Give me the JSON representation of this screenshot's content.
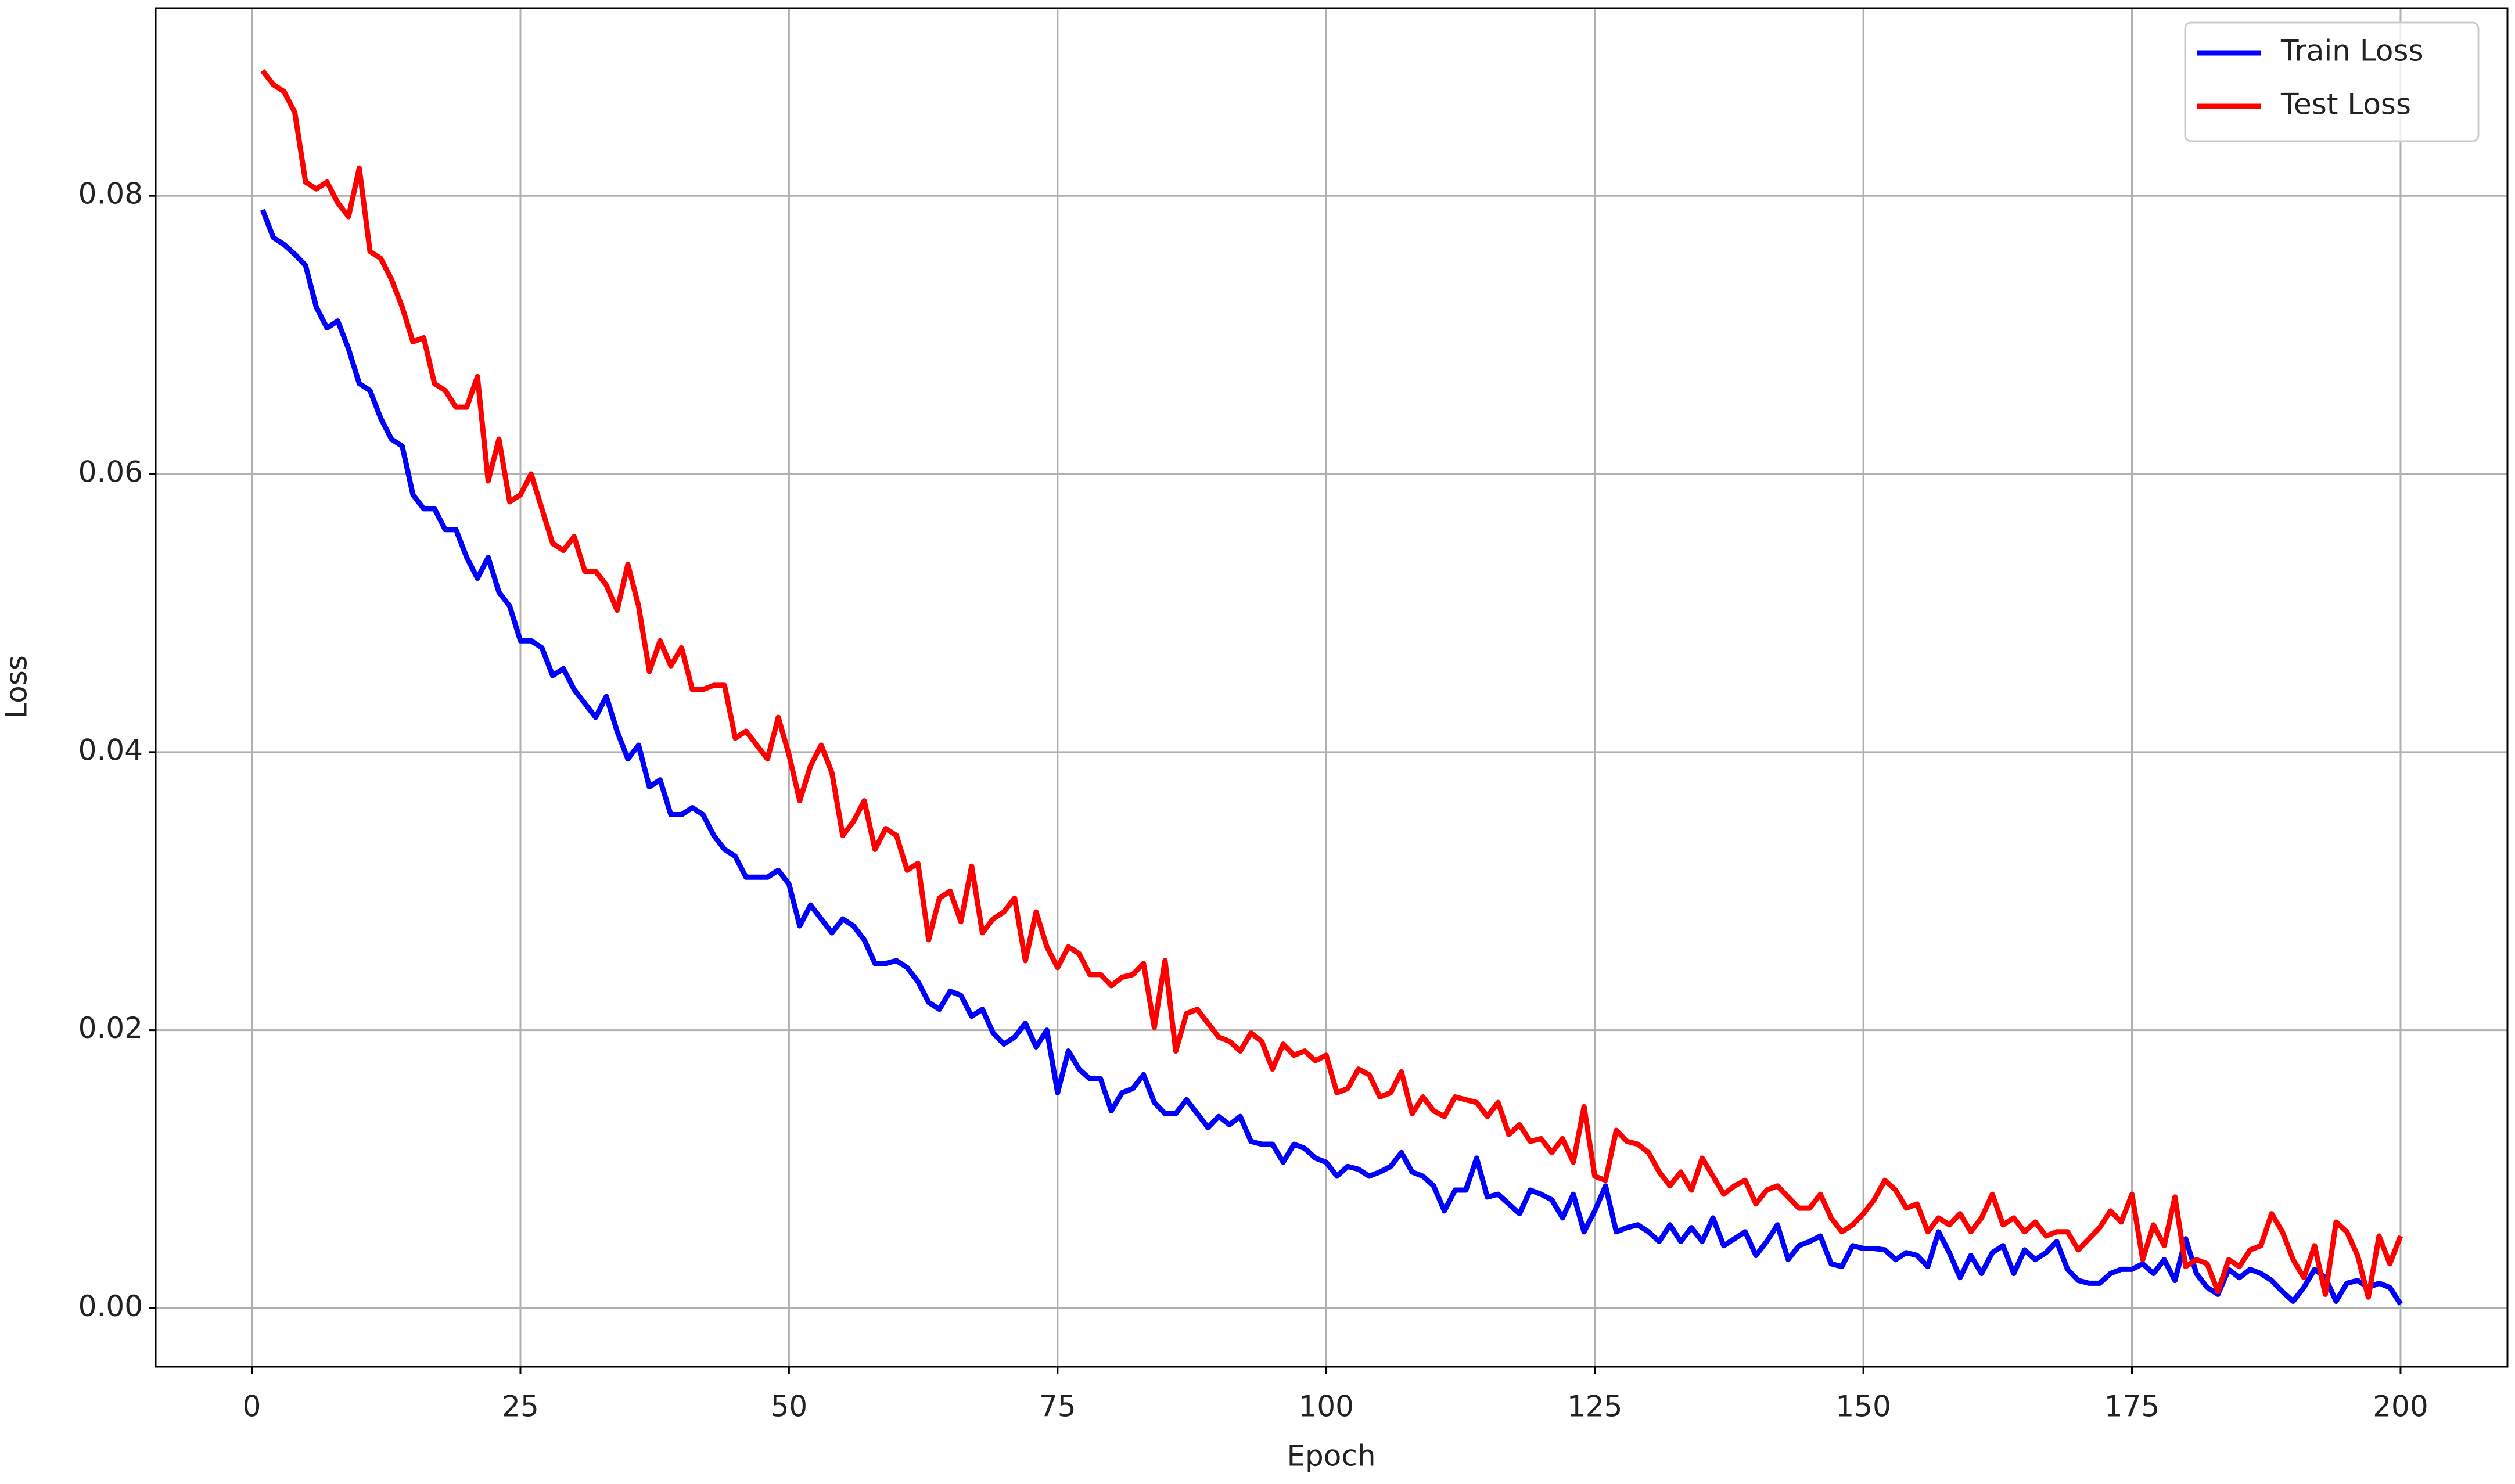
{
  "chart_data": {
    "type": "line",
    "xlabel": "Epoch",
    "ylabel": "Loss",
    "x": [
      1,
      2,
      3,
      4,
      5,
      6,
      7,
      8,
      9,
      10,
      11,
      12,
      13,
      14,
      15,
      16,
      17,
      18,
      19,
      20,
      21,
      22,
      23,
      24,
      25,
      26,
      27,
      28,
      29,
      30,
      31,
      32,
      33,
      34,
      35,
      36,
      37,
      38,
      39,
      40,
      41,
      42,
      43,
      44,
      45,
      46,
      47,
      48,
      49,
      50,
      51,
      52,
      53,
      54,
      55,
      56,
      57,
      58,
      59,
      60,
      61,
      62,
      63,
      64,
      65,
      66,
      67,
      68,
      69,
      70,
      71,
      72,
      73,
      74,
      75,
      76,
      77,
      78,
      79,
      80,
      81,
      82,
      83,
      84,
      85,
      86,
      87,
      88,
      89,
      90,
      91,
      92,
      93,
      94,
      95,
      96,
      97,
      98,
      99,
      100,
      101,
      102,
      103,
      104,
      105,
      106,
      107,
      108,
      109,
      110,
      111,
      112,
      113,
      114,
      115,
      116,
      117,
      118,
      119,
      120,
      121,
      122,
      123,
      124,
      125,
      126,
      127,
      128,
      129,
      130,
      131,
      132,
      133,
      134,
      135,
      136,
      137,
      138,
      139,
      140,
      141,
      142,
      143,
      144,
      145,
      146,
      147,
      148,
      149,
      150,
      151,
      152,
      153,
      154,
      155,
      156,
      157,
      158,
      159,
      160,
      161,
      162,
      163,
      164,
      165,
      166,
      167,
      168,
      169,
      170,
      171,
      172,
      173,
      174,
      175,
      176,
      177,
      178,
      179,
      180,
      181,
      182,
      183,
      184,
      185,
      186,
      187,
      188,
      189,
      190,
      191,
      192,
      193,
      194,
      195,
      196,
      197,
      198,
      199,
      200
    ],
    "series": [
      {
        "name": "Train Loss",
        "color": "#0000ff",
        "values": [
          0.079,
          0.077,
          0.0765,
          0.0758,
          0.075,
          0.072,
          0.0705,
          0.071,
          0.069,
          0.0665,
          0.066,
          0.064,
          0.0625,
          0.062,
          0.0585,
          0.0575,
          0.0575,
          0.056,
          0.056,
          0.054,
          0.0525,
          0.054,
          0.0515,
          0.0505,
          0.048,
          0.048,
          0.0475,
          0.0455,
          0.046,
          0.0445,
          0.0435,
          0.0425,
          0.044,
          0.0415,
          0.0395,
          0.0405,
          0.0375,
          0.038,
          0.0355,
          0.0355,
          0.036,
          0.0355,
          0.034,
          0.033,
          0.0325,
          0.031,
          0.031,
          0.031,
          0.0315,
          0.0305,
          0.0275,
          0.029,
          0.028,
          0.027,
          0.028,
          0.0275,
          0.0265,
          0.0248,
          0.0248,
          0.025,
          0.0245,
          0.0235,
          0.022,
          0.0215,
          0.0228,
          0.0225,
          0.021,
          0.0215,
          0.0198,
          0.019,
          0.0195,
          0.0205,
          0.0188,
          0.02,
          0.0155,
          0.0185,
          0.0172,
          0.0165,
          0.0165,
          0.0142,
          0.0155,
          0.0158,
          0.0168,
          0.0148,
          0.014,
          0.014,
          0.015,
          0.014,
          0.013,
          0.0138,
          0.0132,
          0.0138,
          0.012,
          0.0118,
          0.0118,
          0.0105,
          0.0118,
          0.0115,
          0.0108,
          0.0105,
          0.0095,
          0.0102,
          0.01,
          0.0095,
          0.0098,
          0.0102,
          0.0112,
          0.0098,
          0.0095,
          0.0088,
          0.007,
          0.0085,
          0.0085,
          0.0108,
          0.008,
          0.0082,
          0.0075,
          0.0068,
          0.0085,
          0.0082,
          0.0078,
          0.0065,
          0.0082,
          0.0055,
          0.007,
          0.0088,
          0.0055,
          0.0058,
          0.006,
          0.0055,
          0.0048,
          0.006,
          0.0048,
          0.0058,
          0.0048,
          0.0065,
          0.0045,
          0.005,
          0.0055,
          0.0038,
          0.0048,
          0.006,
          0.0035,
          0.0045,
          0.0048,
          0.0052,
          0.0032,
          0.003,
          0.0045,
          0.0043,
          0.0043,
          0.0042,
          0.0035,
          0.004,
          0.0038,
          0.003,
          0.0055,
          0.004,
          0.0022,
          0.0038,
          0.0025,
          0.004,
          0.0045,
          0.0025,
          0.0042,
          0.0035,
          0.004,
          0.0048,
          0.0028,
          0.002,
          0.0018,
          0.0018,
          0.0025,
          0.0028,
          0.0028,
          0.0032,
          0.0025,
          0.0035,
          0.002,
          0.005,
          0.0025,
          0.0015,
          0.001,
          0.0028,
          0.0022,
          0.0028,
          0.0025,
          0.002,
          0.0012,
          0.0005,
          0.0015,
          0.0028,
          0.0022,
          0.0005,
          0.0018,
          0.002,
          0.0015,
          0.0018,
          0.0015,
          0.0003
        ]
      },
      {
        "name": "Test Loss",
        "color": "#ff0000",
        "values": [
          0.089,
          0.088,
          0.0875,
          0.086,
          0.081,
          0.0805,
          0.081,
          0.0795,
          0.0785,
          0.082,
          0.076,
          0.0755,
          0.074,
          0.072,
          0.0695,
          0.0698,
          0.0665,
          0.066,
          0.0648,
          0.0648,
          0.067,
          0.0595,
          0.0625,
          0.058,
          0.0585,
          0.06,
          0.0575,
          0.055,
          0.0545,
          0.0555,
          0.053,
          0.053,
          0.052,
          0.0502,
          0.0535,
          0.0505,
          0.0458,
          0.048,
          0.0462,
          0.0475,
          0.0445,
          0.0445,
          0.0448,
          0.0448,
          0.041,
          0.0415,
          0.0405,
          0.0395,
          0.0425,
          0.0398,
          0.0365,
          0.039,
          0.0405,
          0.0385,
          0.034,
          0.035,
          0.0365,
          0.033,
          0.0345,
          0.034,
          0.0315,
          0.032,
          0.0265,
          0.0295,
          0.03,
          0.0278,
          0.0318,
          0.027,
          0.028,
          0.0285,
          0.0295,
          0.025,
          0.0285,
          0.026,
          0.0245,
          0.026,
          0.0255,
          0.024,
          0.024,
          0.0232,
          0.0238,
          0.024,
          0.0248,
          0.0202,
          0.025,
          0.0185,
          0.0212,
          0.0215,
          0.0205,
          0.0195,
          0.0192,
          0.0185,
          0.0198,
          0.0192,
          0.0172,
          0.019,
          0.0182,
          0.0185,
          0.0178,
          0.0182,
          0.0155,
          0.0158,
          0.0172,
          0.0168,
          0.0152,
          0.0155,
          0.017,
          0.014,
          0.0152,
          0.0142,
          0.0138,
          0.0152,
          0.015,
          0.0148,
          0.0138,
          0.0148,
          0.0125,
          0.0132,
          0.012,
          0.0122,
          0.0112,
          0.0122,
          0.0105,
          0.0145,
          0.0095,
          0.0092,
          0.0128,
          0.012,
          0.0118,
          0.0112,
          0.0098,
          0.0088,
          0.0098,
          0.0085,
          0.0108,
          0.0095,
          0.0082,
          0.0088,
          0.0092,
          0.0075,
          0.0085,
          0.0088,
          0.008,
          0.0072,
          0.0072,
          0.0082,
          0.0065,
          0.0055,
          0.006,
          0.0068,
          0.0078,
          0.0092,
          0.0085,
          0.0072,
          0.0075,
          0.0055,
          0.0065,
          0.006,
          0.0068,
          0.0055,
          0.0065,
          0.0082,
          0.006,
          0.0065,
          0.0055,
          0.0062,
          0.0052,
          0.0055,
          0.0055,
          0.0042,
          0.005,
          0.0058,
          0.007,
          0.0062,
          0.0082,
          0.0035,
          0.006,
          0.0045,
          0.008,
          0.003,
          0.0035,
          0.0032,
          0.0012,
          0.0035,
          0.003,
          0.0042,
          0.0045,
          0.0068,
          0.0055,
          0.0035,
          0.0022,
          0.0045,
          0.001,
          0.0062,
          0.0055,
          0.0038,
          0.0008,
          0.0052,
          0.0032,
          0.0052
        ]
      }
    ],
    "xlim": [
      -8.95,
      209.95
    ],
    "xticks": [
      0,
      25,
      50,
      75,
      100,
      125,
      150,
      175,
      200
    ],
    "ylim": [
      -0.0042,
      0.0935
    ],
    "yticks": [
      {
        "value": 0,
        "label": "0.00"
      },
      {
        "value": 0.02,
        "label": "0.02"
      },
      {
        "value": 0.04,
        "label": "0.04"
      },
      {
        "value": 0.06,
        "label": "0.06"
      },
      {
        "value": 0.08,
        "label": "0.08"
      }
    ],
    "grid": true,
    "legend": "upper right"
  }
}
